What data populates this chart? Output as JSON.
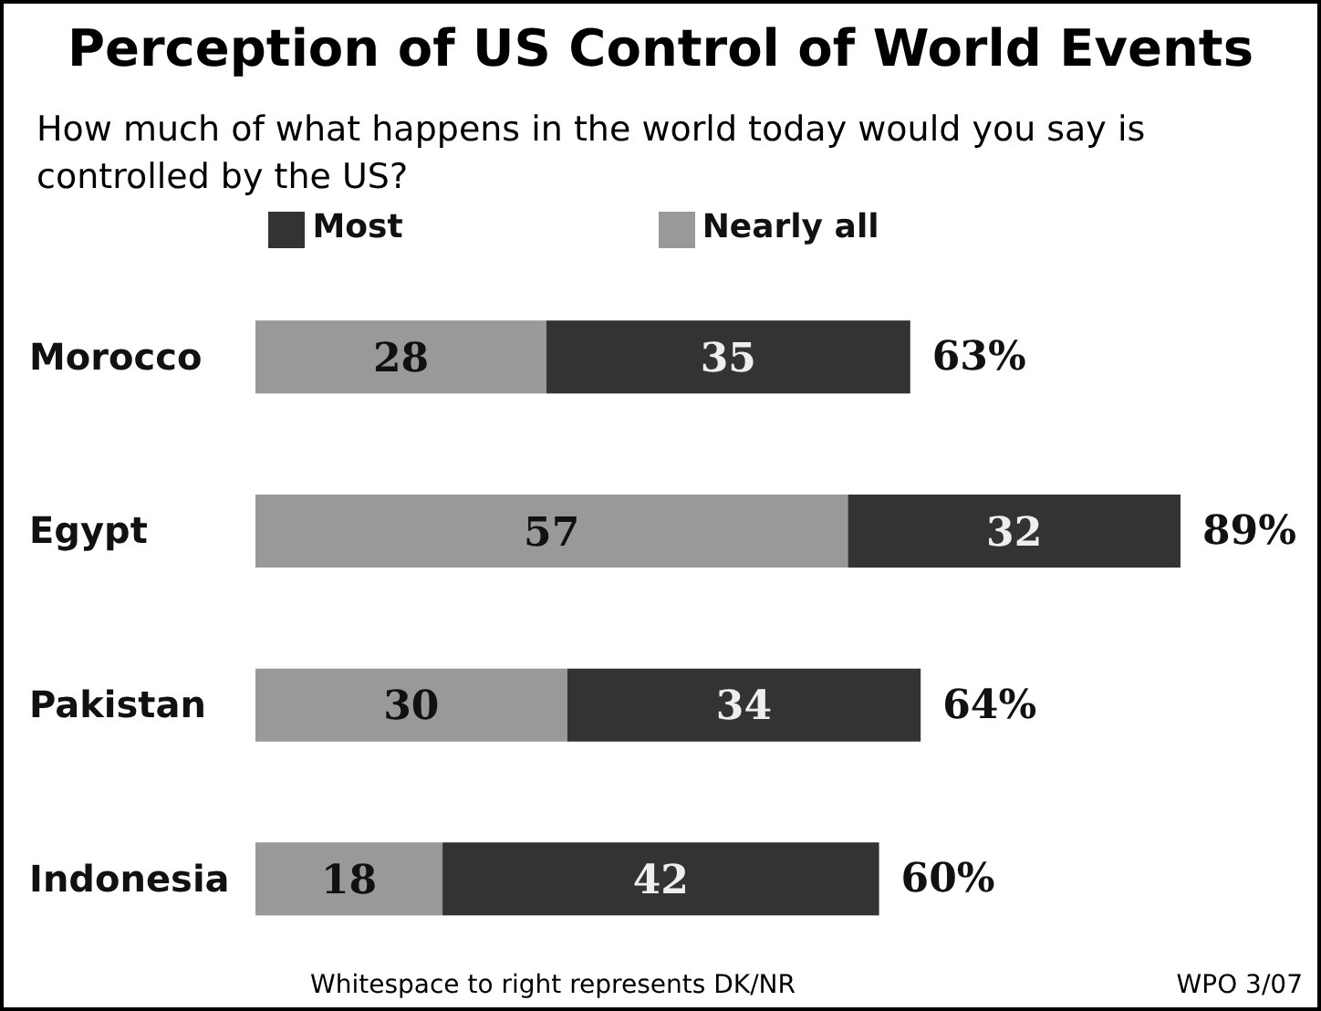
{
  "chart_data": {
    "type": "bar",
    "orientation": "horizontal",
    "stacked": true,
    "title": "Perception of US Control of World Events",
    "subtitle": "How much of what happens in the world today would you say is controlled by the US?",
    "categories": [
      "Morocco",
      "Egypt",
      "Pakistan",
      "Indonesia"
    ],
    "series": [
      {
        "name": "Nearly all",
        "color": "#999999",
        "values": [
          28,
          57,
          30,
          18
        ]
      },
      {
        "name": "Most",
        "color": "#333333",
        "values": [
          35,
          32,
          34,
          42
        ]
      }
    ],
    "data_labels": true,
    "totals": [
      "63%",
      "89%",
      "64%",
      "60%"
    ],
    "legend": "top",
    "annotations": [
      "Whitespace to right represents DK/NR",
      "WPO 3/07"
    ]
  }
}
